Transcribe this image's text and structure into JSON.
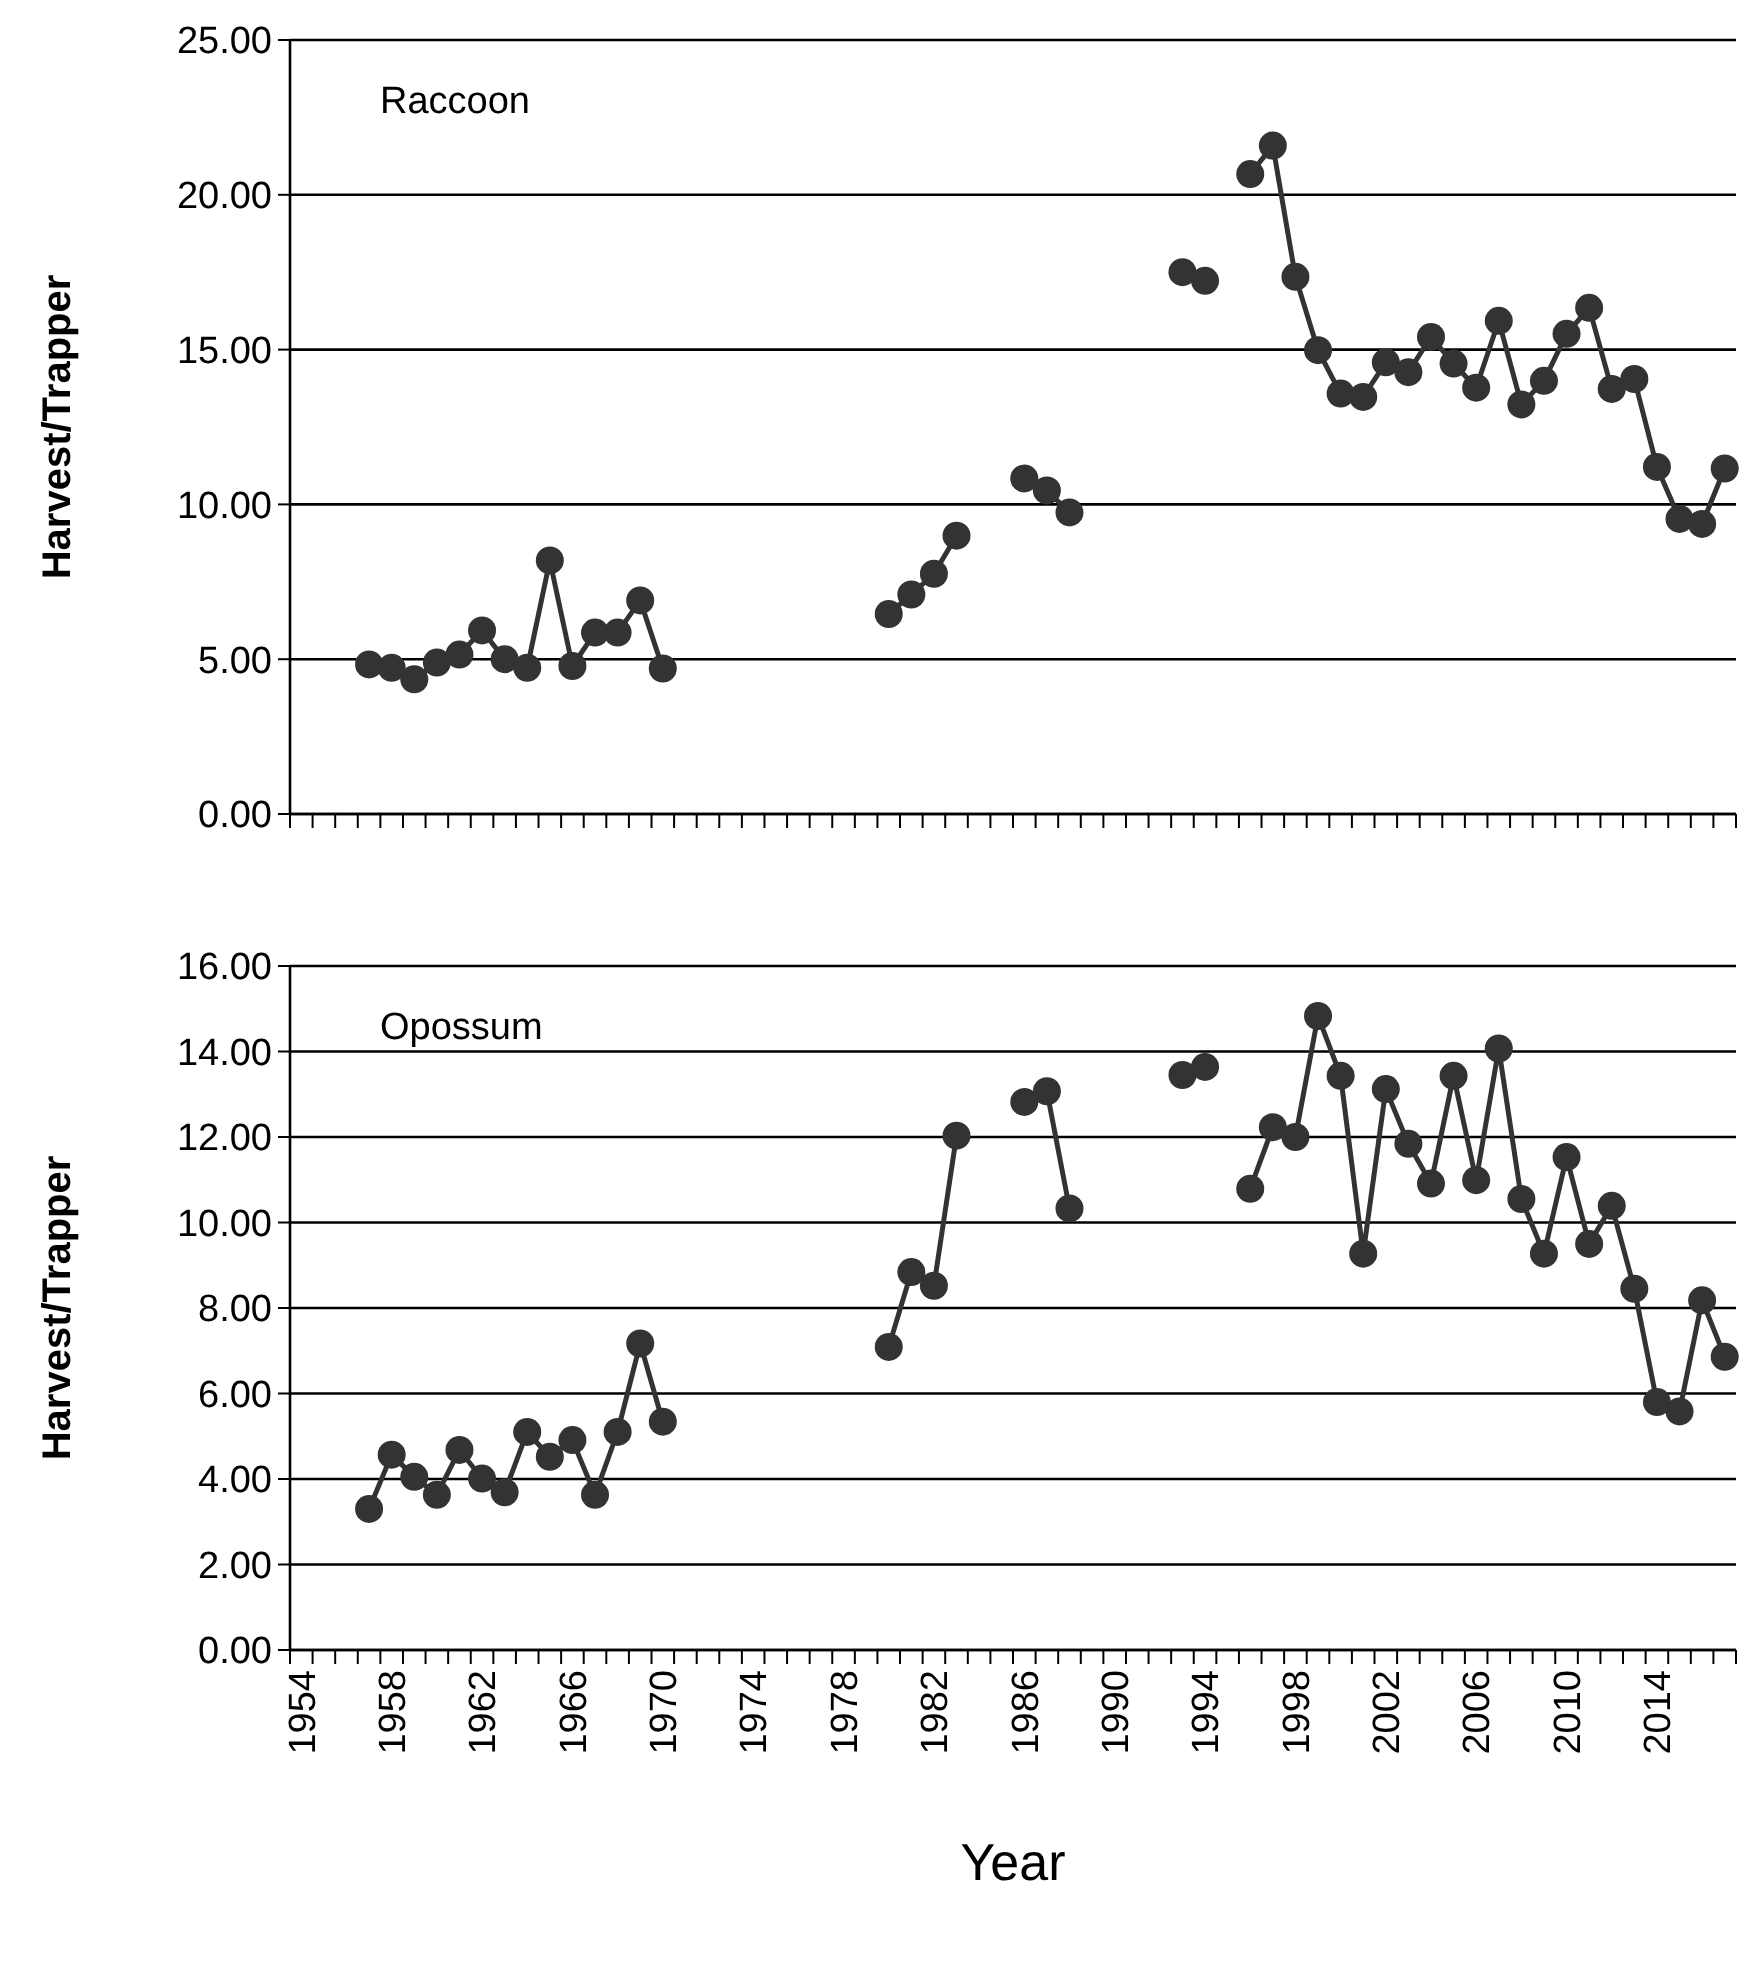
{
  "chart_data": [
    {
      "type": "line",
      "title": "Raccoon",
      "ylabel": "Harvest/Trapper",
      "categories": [
        null,
        null,
        null,
        null,
        null,
        null,
        null,
        null,
        null,
        null,
        null,
        null,
        null,
        null,
        null,
        null,
        null,
        null,
        null,
        null,
        null,
        null,
        null,
        null,
        null,
        null,
        null,
        null,
        null,
        null,
        null,
        null,
        null,
        null,
        null,
        null,
        null,
        null,
        null,
        null,
        null,
        null,
        null,
        null,
        null,
        null,
        null,
        null,
        null,
        null,
        null,
        null,
        null,
        null,
        null,
        null,
        null,
        null,
        null,
        null,
        null,
        null,
        null,
        null
      ],
      "series": [
        {
          "color": "#333333",
          "values": [
            null,
            null,
            null,
            4.83,
            4.72,
            4.35,
            4.89,
            5.15,
            5.93,
            5.0,
            4.72,
            8.19,
            4.78,
            5.86,
            5.86,
            6.9,
            4.7,
            null,
            null,
            null,
            null,
            null,
            null,
            null,
            null,
            null,
            6.46,
            7.09,
            7.76,
            8.99,
            null,
            null,
            10.84,
            10.45,
            9.74,
            null,
            null,
            null,
            null,
            17.5,
            17.22,
            null,
            20.67,
            21.59,
            17.35,
            14.98,
            13.58,
            13.47,
            14.59,
            14.27,
            15.41,
            14.55,
            13.77,
            15.93,
            13.23,
            13.99,
            15.51,
            16.35,
            13.73,
            14.05,
            11.21,
            9.53,
            9.37,
            11.16
          ]
        }
      ],
      "ylim": [
        0,
        25
      ],
      "yticks": [
        {
          "value": 0,
          "label": "0.00"
        },
        {
          "value": 5,
          "label": "5.00"
        },
        {
          "value": 10,
          "label": "10.00"
        },
        {
          "value": 15,
          "label": "15.00"
        },
        {
          "value": 20,
          "label": "20.00"
        },
        {
          "value": 25,
          "label": "25.00"
        }
      ],
      "grid": "y",
      "marker": "circle",
      "line_style": "solid",
      "tick_labels": "y"
    },
    {
      "type": "line",
      "title": "Opossum",
      "ylabel": "Harvest/Trapper",
      "xlabel": "Year",
      "categories": [
        "1954",
        null,
        null,
        null,
        "1958",
        null,
        null,
        null,
        "1962",
        null,
        null,
        null,
        "1966",
        null,
        null,
        null,
        "1970",
        null,
        null,
        null,
        "1974",
        null,
        null,
        null,
        "1978",
        null,
        null,
        null,
        "1982",
        null,
        null,
        null,
        "1986",
        null,
        null,
        null,
        "1990",
        null,
        null,
        null,
        "1994",
        null,
        null,
        null,
        "1998",
        null,
        null,
        null,
        "2002",
        null,
        null,
        null,
        "2006",
        null,
        null,
        null,
        "2010",
        null,
        null,
        null,
        "2014",
        null,
        null,
        null
      ],
      "series": [
        {
          "color": "#333333",
          "values": [
            null,
            null,
            null,
            3.3,
            4.57,
            4.05,
            3.63,
            4.68,
            4.01,
            3.69,
            5.1,
            4.52,
            4.91,
            3.63,
            5.1,
            7.17,
            5.34,
            null,
            null,
            null,
            null,
            null,
            null,
            null,
            null,
            null,
            7.09,
            8.84,
            8.52,
            12.03,
            null,
            null,
            12.82,
            13.07,
            10.33,
            null,
            null,
            null,
            null,
            13.45,
            13.64,
            null,
            10.79,
            12.23,
            12.0,
            14.83,
            13.43,
            9.27,
            13.12,
            11.84,
            10.91,
            13.43,
            10.99,
            14.07,
            10.55,
            9.27,
            11.53,
            9.5,
            10.39,
            8.45,
            5.8,
            5.58,
            8.18,
            6.86
          ]
        }
      ],
      "ylim": [
        0,
        16
      ],
      "yticks": [
        {
          "value": 0,
          "label": "0.00"
        },
        {
          "value": 2,
          "label": "2.00"
        },
        {
          "value": 4,
          "label": "4.00"
        },
        {
          "value": 6,
          "label": "6.00"
        },
        {
          "value": 8,
          "label": "8.00"
        },
        {
          "value": 10,
          "label": "10.00"
        },
        {
          "value": 12,
          "label": "12.00"
        },
        {
          "value": 14,
          "label": "14.00"
        },
        {
          "value": 16,
          "label": "16.00"
        }
      ],
      "grid": "y",
      "marker": "circle",
      "line_style": "solid"
    }
  ]
}
